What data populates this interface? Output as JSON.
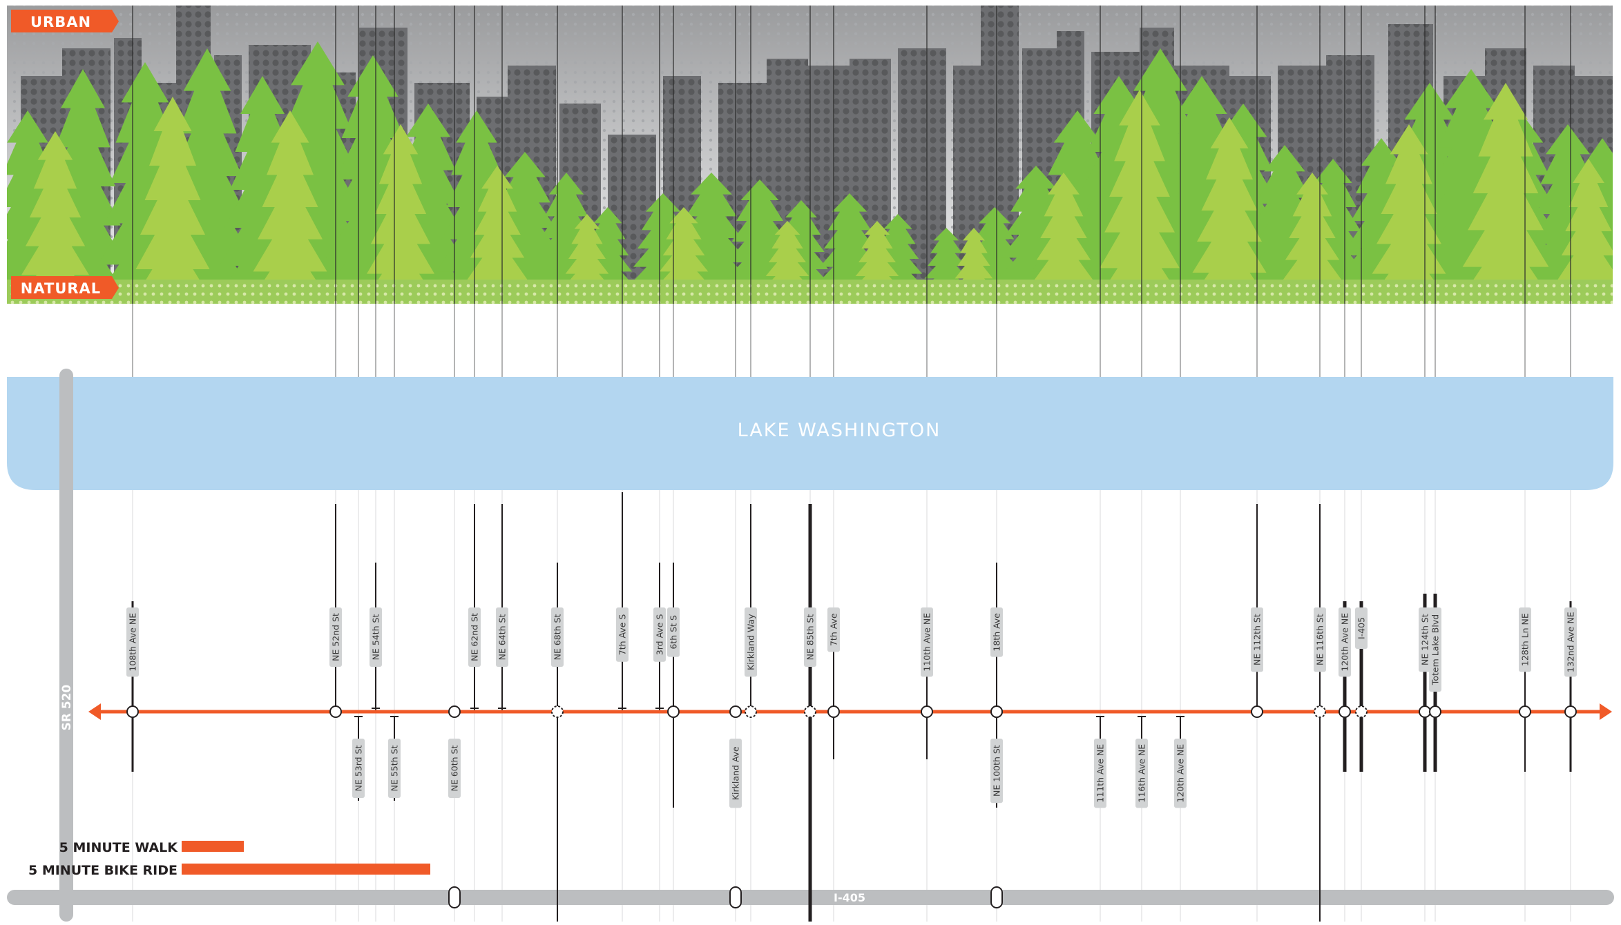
{
  "title": "",
  "colors": {
    "accent": "#f05a28",
    "lake": "#b3d6f0",
    "road": "#bcbec0",
    "forest_dark": "#7ac143",
    "forest_light": "#a9cf4b",
    "city": "#58595b",
    "label_bg": "#d1d3d4"
  },
  "spectrum": {
    "top_label": "URBAN",
    "bottom_label": "NATURAL"
  },
  "lake": {
    "name": "LAKE WASHINGTON"
  },
  "highways": {
    "vertical": "SR 520",
    "horizontal": "I-405"
  },
  "legend": [
    {
      "label": "5 MINUTE WALK",
      "minutes": 5,
      "mode": "walk"
    },
    {
      "label": "5 MINUTE BIKE RIDE",
      "minutes": 5,
      "mode": "bike"
    }
  ],
  "crossings_above": [
    {
      "name": "108th Ave NE",
      "stop": "station"
    },
    {
      "name": "NE 52nd St",
      "stop": "station"
    },
    {
      "name": "NE 54th St",
      "stop": "none"
    },
    {
      "name": "NE 62nd St",
      "stop": "none"
    },
    {
      "name": "NE 64th St",
      "stop": "none"
    },
    {
      "name": "NE 68th St",
      "stop": "potential"
    },
    {
      "name": "7th Ave S",
      "stop": "none"
    },
    {
      "name": "3rd Ave S",
      "stop": "none"
    },
    {
      "name": "6th St S",
      "stop": "station"
    },
    {
      "name": "Kirkland Way",
      "stop": "potential"
    },
    {
      "name": "NE 85th St",
      "stop": "potential"
    },
    {
      "name": "7th Ave",
      "stop": "station"
    },
    {
      "name": "110th Ave NE",
      "stop": "station"
    },
    {
      "name": "18th Ave",
      "stop": "station"
    },
    {
      "name": "NE 112th St",
      "stop": "station"
    },
    {
      "name": "NE 116th St",
      "stop": "potential"
    },
    {
      "name": "120th Ave NE",
      "stop": "station"
    },
    {
      "name": "I-405",
      "stop": "potential"
    },
    {
      "name": "NE 124th St",
      "stop": "station"
    },
    {
      "name": "Totem Lake Blvd",
      "stop": "station"
    },
    {
      "name": "128th Ln NE",
      "stop": "station"
    },
    {
      "name": "132nd Ave NE",
      "stop": "station"
    }
  ],
  "crossings_below": [
    {
      "name": "NE 53rd St"
    },
    {
      "name": "NE 55th St"
    },
    {
      "name": "NE 60th St"
    },
    {
      "name": "Kirkland Ave"
    },
    {
      "name": "NE 100th St"
    },
    {
      "name": "111th Ave NE"
    },
    {
      "name": "116th Ave NE"
    },
    {
      "name": "120th Ave NE"
    }
  ]
}
